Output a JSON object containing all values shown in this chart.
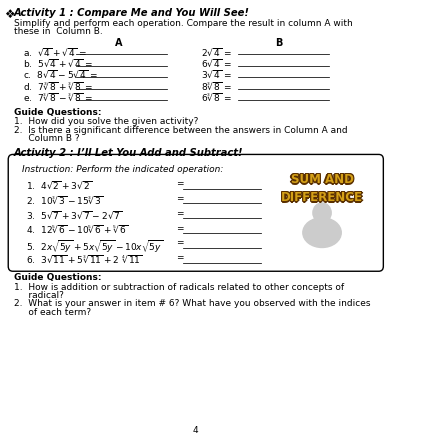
{
  "title_bullet": "❖",
  "title_act1": "Activity 1 : Compare Me and You Will See!",
  "subtitle_act1_l1": "Simplify and perform each operation. Compare the result in column A with",
  "subtitle_act1_l2": "these in  Column B.",
  "col_a_header": "A",
  "col_b_header": "B",
  "col_a_rows": [
    "a.  $\\sqrt{4} + \\sqrt{4}$ =",
    "b.  $5\\sqrt{4} + \\sqrt{4}$ =",
    "c.  $8\\sqrt{4} - 5\\sqrt{4}$ =",
    "d.  $7\\sqrt[3]{8} + \\sqrt[3]{8}$ =",
    "e.  $7\\sqrt[3]{8} - \\sqrt[3]{8}$ ="
  ],
  "col_b_rows": [
    "$2\\sqrt{4}$ =",
    "$6\\sqrt{4}$ =",
    "$3\\sqrt{4}$ =",
    "$8\\sqrt[3]{8}$ =",
    "$6\\sqrt[3]{8}$ ="
  ],
  "guide_q_label": "Guide Questions:",
  "guide_q1_act1": "1.  How did you solve the given activity?",
  "guide_q2_act1_l1": "2.  Is there a significant difference between the answers in Column A and",
  "guide_q2_act1_l2": "     Column B ?",
  "title_act2": "Activity 2 : I’ll Let You Add and Subtract!",
  "box_instruction": "Instruction: Perform the indicated operation:",
  "box_items": [
    "1.  $4\\sqrt{2} + 3\\sqrt{2}$",
    "2.  $10\\sqrt[3]{3} - 15\\sqrt[3]{3}$",
    "3.  $5\\sqrt{7} + 3\\sqrt{7} - 2\\sqrt{7}$",
    "4.  $12\\sqrt[5]{6} - 10\\sqrt[5]{6} + \\sqrt[5]{6}$",
    "5.  $2x\\sqrt{5y} + 5x\\sqrt{5y} - 10x\\sqrt{5y}$",
    "6.  $3\\sqrt{11} + 5\\sqrt[3]{11} + 2\\ \\sqrt[4]{11}$"
  ],
  "sum_line1": "SUM AND",
  "sum_line2": "DIFFERENCE",
  "guide_q_label2": "Guide Questions:",
  "guide_q1_act2": "1.  How is addition or subtraction of radicals related to other concepts of",
  "guide_q1_act2_l2": "     radical?",
  "guide_q2_act2": "2.  What is your answer in item # 6? What have you observed with the indices",
  "guide_q2_act2_l2": "     of each term?",
  "page_num": "4",
  "bg_color": "#ffffff"
}
